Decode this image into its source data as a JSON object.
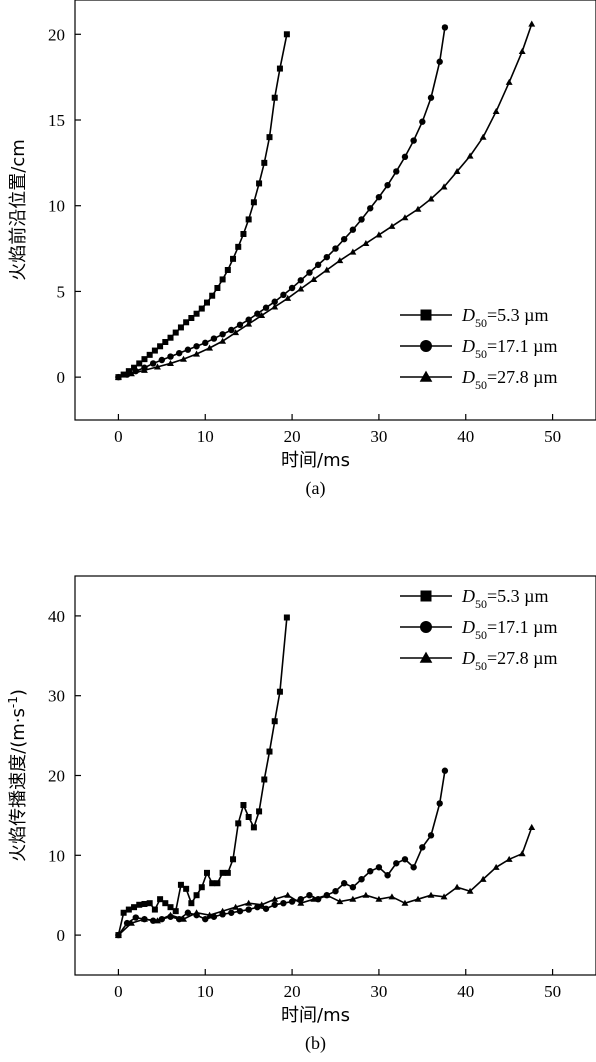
{
  "chart_data": [
    {
      "type": "line",
      "caption": "(a)",
      "xlabel": "时间/ms",
      "ylabel": "火焰前沿位置/cm",
      "xlim": [
        -5,
        55
      ],
      "ylim": [
        -2.5,
        22
      ],
      "xticks": [
        0,
        10,
        20,
        30,
        40,
        50
      ],
      "yticks": [
        0,
        5,
        10,
        15,
        20
      ],
      "legend_position": "bottom-right",
      "series": [
        {
          "name_main": "D",
          "name_sub": "50",
          "name_rest": "=5.3 µm",
          "marker": "square",
          "x": [
            0,
            0.6,
            1.2,
            1.8,
            2.4,
            3.0,
            3.6,
            4.2,
            4.8,
            5.4,
            6.0,
            6.6,
            7.2,
            7.8,
            8.4,
            9.0,
            9.6,
            10.2,
            10.8,
            11.4,
            12.0,
            12.6,
            13.2,
            13.8,
            14.4,
            15.0,
            15.6,
            16.2,
            16.8,
            17.4,
            18.0,
            18.6,
            19.4
          ],
          "y": [
            0,
            0.15,
            0.35,
            0.55,
            0.8,
            1.05,
            1.3,
            1.55,
            1.8,
            2.05,
            2.3,
            2.6,
            2.9,
            3.2,
            3.45,
            3.7,
            4.0,
            4.35,
            4.75,
            5.2,
            5.7,
            6.25,
            6.9,
            7.6,
            8.35,
            9.2,
            10.2,
            11.3,
            12.5,
            14.0,
            16.3,
            18.0,
            20.0
          ]
        },
        {
          "name_main": "D",
          "name_sub": "50",
          "name_rest": "=17.1 µm",
          "marker": "circle",
          "x": [
            0,
            1,
            2,
            3,
            4,
            5,
            6,
            7,
            8,
            9,
            10,
            11,
            12,
            13,
            14,
            15,
            16,
            17,
            18,
            19,
            20,
            21,
            22,
            23,
            24,
            25,
            26,
            27,
            28,
            29,
            30,
            31,
            32,
            33,
            34,
            35,
            36,
            37,
            37.6
          ],
          "y": [
            0,
            0.15,
            0.35,
            0.55,
            0.8,
            1.0,
            1.2,
            1.4,
            1.6,
            1.8,
            2.0,
            2.25,
            2.5,
            2.75,
            3.05,
            3.35,
            3.7,
            4.05,
            4.4,
            4.8,
            5.2,
            5.65,
            6.1,
            6.55,
            7.0,
            7.5,
            8.05,
            8.6,
            9.2,
            9.85,
            10.5,
            11.2,
            12.0,
            12.85,
            13.8,
            14.9,
            16.3,
            18.4,
            20.4
          ]
        },
        {
          "name_main": "D",
          "name_sub": "50",
          "name_rest": "=27.8 µm",
          "marker": "triangle",
          "x": [
            0,
            1.5,
            3,
            4.5,
            6,
            7.5,
            9,
            10.5,
            12,
            13.5,
            15,
            16.5,
            18,
            19.5,
            21,
            22.5,
            24,
            25.5,
            27,
            28.5,
            30,
            31.5,
            33,
            34.5,
            36,
            37.5,
            39,
            40.5,
            42,
            43.5,
            45,
            46.5,
            47.6
          ],
          "y": [
            0,
            0.2,
            0.4,
            0.6,
            0.8,
            1.05,
            1.35,
            1.7,
            2.1,
            2.6,
            3.1,
            3.6,
            4.1,
            4.6,
            5.15,
            5.7,
            6.25,
            6.8,
            7.3,
            7.8,
            8.3,
            8.8,
            9.3,
            9.8,
            10.4,
            11.1,
            12.0,
            12.9,
            14.0,
            15.5,
            17.2,
            19.0,
            20.6
          ]
        }
      ]
    },
    {
      "type": "line",
      "caption": "(b)",
      "xlabel": "时间/ms",
      "ylabel_main": "火焰传播速度/(m·s",
      "ylabel_sup": "-1",
      "ylabel_end": ")",
      "xlim": [
        -5,
        55
      ],
      "ylim": [
        -5,
        45
      ],
      "xticks": [
        0,
        10,
        20,
        30,
        40,
        50
      ],
      "yticks": [
        0,
        10,
        20,
        30,
        40
      ],
      "legend_position": "top-right",
      "series": [
        {
          "name_main": "D",
          "name_sub": "50",
          "name_rest": "=5.3 µm",
          "marker": "square",
          "x": [
            0,
            0.6,
            1.2,
            1.8,
            2.4,
            3.0,
            3.6,
            4.2,
            4.8,
            5.4,
            6.0,
            6.6,
            7.2,
            7.8,
            8.4,
            9.0,
            9.6,
            10.2,
            10.8,
            11.4,
            12.0,
            12.6,
            13.2,
            13.8,
            14.4,
            15.0,
            15.6,
            16.2,
            16.8,
            17.4,
            18.0,
            18.6,
            19.4
          ],
          "y": [
            0,
            2.8,
            3.2,
            3.5,
            3.8,
            3.9,
            4.0,
            3.2,
            4.5,
            4.0,
            3.5,
            3.0,
            6.3,
            5.8,
            4.0,
            5.0,
            6.0,
            7.8,
            6.5,
            6.5,
            7.8,
            7.8,
            9.5,
            14.0,
            16.3,
            14.8,
            13.5,
            15.5,
            19.5,
            23.0,
            26.8,
            30.5,
            39.8
          ]
        },
        {
          "name_main": "D",
          "name_sub": "50",
          "name_rest": "=17.1 µm",
          "marker": "circle",
          "x": [
            0,
            1,
            2,
            3,
            4,
            5,
            6,
            7,
            8,
            9,
            10,
            11,
            12,
            13,
            14,
            15,
            16,
            17,
            18,
            19,
            20,
            21,
            22,
            23,
            24,
            25,
            26,
            27,
            28,
            29,
            30,
            31,
            32,
            33,
            34,
            35,
            36,
            37,
            37.6
          ],
          "y": [
            0,
            1.5,
            2.2,
            2.0,
            1.8,
            2.0,
            2.3,
            2.0,
            2.8,
            2.5,
            2.0,
            2.3,
            2.6,
            2.8,
            3.0,
            3.2,
            3.5,
            3.3,
            3.8,
            4.0,
            4.2,
            4.5,
            5.0,
            4.5,
            5.0,
            5.5,
            6.5,
            6.0,
            7.0,
            8.0,
            8.5,
            7.5,
            9.0,
            9.5,
            8.5,
            11.0,
            12.5,
            16.5,
            20.6
          ]
        },
        {
          "name_main": "D",
          "name_sub": "50",
          "name_rest": "=27.8 µm",
          "marker": "triangle",
          "x": [
            0,
            1.5,
            3,
            4.5,
            6,
            7.5,
            9,
            10.5,
            12,
            13.5,
            15,
            16.5,
            18,
            19.5,
            21,
            22.5,
            24,
            25.5,
            27,
            28.5,
            30,
            31.5,
            33,
            34.5,
            36,
            37.5,
            39,
            40.5,
            42,
            43.5,
            45,
            46.5,
            47.6
          ],
          "y": [
            0,
            1.5,
            2.0,
            1.8,
            2.5,
            2.0,
            2.8,
            2.5,
            3.0,
            3.5,
            4.0,
            3.8,
            4.5,
            5.0,
            4.0,
            4.5,
            5.0,
            4.2,
            4.5,
            5.0,
            4.5,
            4.8,
            4.0,
            4.5,
            5.0,
            4.8,
            6.0,
            5.5,
            7.0,
            8.5,
            9.5,
            10.2,
            13.5
          ]
        }
      ]
    }
  ]
}
